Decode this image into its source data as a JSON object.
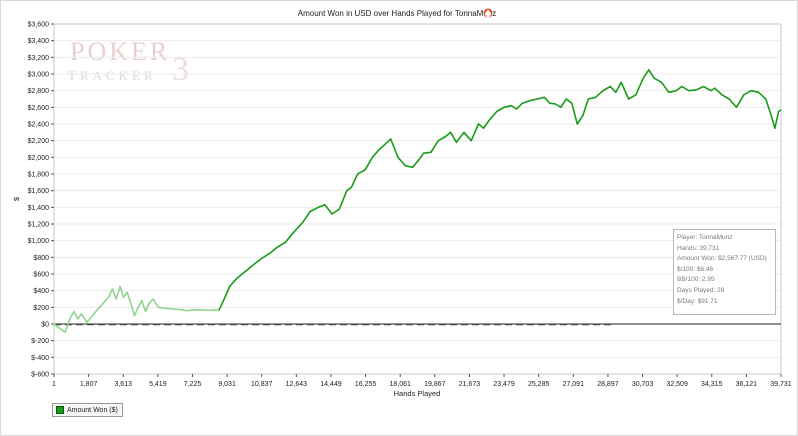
{
  "chart_data": {
    "type": "line",
    "title": "Amount Won in USD over Hands Played for TonnaMunz",
    "xlabel": "Hands Played",
    "ylabel": "$",
    "xlim": [
      1,
      39731
    ],
    "ylim": [
      -600,
      3600
    ],
    "x_ticks": [
      "1",
      "1,807",
      "3,613",
      "5,419",
      "7,225",
      "9,031",
      "10,837",
      "12,643",
      "14,449",
      "16,255",
      "18,061",
      "19,867",
      "21,673",
      "23,479",
      "25,285",
      "27,091",
      "28,897",
      "30,703",
      "32,509",
      "34,315",
      "36,121",
      "39,731"
    ],
    "y_ticks": [
      "$3,600",
      "$3,400",
      "$3,200",
      "$3,000",
      "$2,800",
      "$2,600",
      "$2,400",
      "$2,200",
      "$2,000",
      "$1,800",
      "$1,600",
      "$1,400",
      "$1,200",
      "$1,000",
      "$800",
      "$600",
      "$400",
      "$200",
      "$0",
      "$-200",
      "$-400",
      "$-600"
    ],
    "grid": true,
    "legend": "bottom-left",
    "series": [
      {
        "name": "Amount Won ($)",
        "color": "#189c18",
        "light_color": "#8fd48f",
        "light_until": 9031,
        "x": [
          1,
          300,
          600,
          900,
          1100,
          1300,
          1500,
          1807,
          2100,
          2400,
          2700,
          3000,
          3200,
          3400,
          3613,
          3800,
          4000,
          4200,
          4400,
          4600,
          4800,
          5000,
          5200,
          5419,
          5700,
          6000,
          6500,
          7000,
          7225,
          7800,
          8400,
          9031,
          9300,
          9600,
          10000,
          10400,
          10837,
          11300,
          11800,
          12200,
          12643,
          13100,
          13600,
          14000,
          14449,
          14800,
          15200,
          15600,
          16000,
          16255,
          16600,
          17000,
          17400,
          17800,
          18061,
          18400,
          18800,
          19200,
          19600,
          19867,
          20200,
          20600,
          21000,
          21400,
          21673,
          22000,
          22400,
          22800,
          23200,
          23479,
          23800,
          24200,
          24600,
          25000,
          25285,
          25600,
          26000,
          26400,
          26800,
          27091,
          27400,
          27700,
          28000,
          28300,
          28600,
          28897,
          29200,
          29600,
          30000,
          30400,
          30703,
          31000,
          31400,
          31800,
          32200,
          32509,
          32800,
          33200,
          33600,
          34000,
          34315,
          34700,
          35100,
          35500,
          35900,
          36121,
          36500,
          36900,
          37300,
          37700,
          38100,
          38500,
          38900,
          39200,
          39400,
          39600,
          39731
        ],
        "y": [
          0,
          -50,
          -100,
          80,
          150,
          60,
          120,
          20,
          100,
          180,
          250,
          330,
          420,
          300,
          450,
          320,
          380,
          250,
          100,
          200,
          280,
          150,
          250,
          300,
          200,
          190,
          180,
          170,
          160,
          170,
          165,
          170,
          300,
          450,
          550,
          620,
          700,
          780,
          850,
          920,
          980,
          1100,
          1220,
          1350,
          1400,
          1430,
          1320,
          1380,
          1600,
          1640,
          1800,
          1850,
          2000,
          2100,
          2150,
          2220,
          2000,
          1900,
          1880,
          1950,
          2050,
          2060,
          2200,
          2250,
          2300,
          2180,
          2300,
          2200,
          2400,
          2350,
          2450,
          2550,
          2600,
          2620,
          2580,
          2650,
          2680,
          2700,
          2720,
          2650,
          2640,
          2600,
          2700,
          2650,
          2400,
          2500,
          2700,
          2720,
          2800,
          2850,
          2780,
          2900,
          2700,
          2750,
          2950,
          3050,
          2950,
          2900,
          2780,
          2800,
          2850,
          2800,
          2810,
          2850,
          2800,
          2830,
          2750,
          2700,
          2600,
          2750,
          2800,
          2780,
          2700,
          2500,
          2350,
          2550,
          2567.77
        ]
      }
    ]
  },
  "stats": {
    "player": "Player: TonnaMunz",
    "hands": "Hands: 39,731",
    "amount_won": "Amount Won: $2,567.77 (USD)",
    "per_100": "$/100: $6.46",
    "bb_100": "BB/100: 2.95",
    "days_played": "Days Played: 28",
    "per_day": "$/Day: $91.71"
  },
  "watermark": {
    "line1": "POKER",
    "line2": "TRACKER",
    "number": "3"
  },
  "title_icon": "spade-icon"
}
